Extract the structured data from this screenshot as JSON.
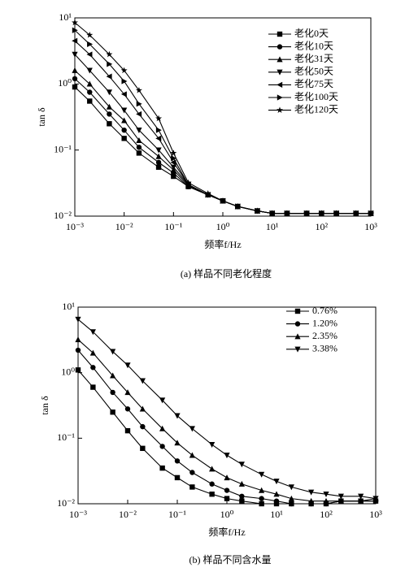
{
  "chart_data": [
    {
      "type": "line",
      "caption": "(a) 样品不同老化程度",
      "xlabel": "频率f/Hz",
      "ylabel": "tan δ",
      "xscale": "log",
      "yscale": "log",
      "xlim": [
        0.001,
        1000
      ],
      "ylim": [
        0.01,
        10
      ],
      "xticks": [
        {
          "value": 0.001,
          "label": "10⁻³"
        },
        {
          "value": 0.01,
          "label": "10⁻²"
        },
        {
          "value": 0.1,
          "label": "10⁻¹"
        },
        {
          "value": 1,
          "label": "10⁰"
        },
        {
          "value": 10,
          "label": "10¹"
        },
        {
          "value": 100,
          "label": "10²"
        },
        {
          "value": 1000,
          "label": "10³"
        }
      ],
      "yticks": [
        {
          "value": 0.01,
          "label": "10⁻²"
        },
        {
          "value": 0.1,
          "label": "10⁻¹"
        },
        {
          "value": 1,
          "label": "10⁰"
        },
        {
          "value": 10,
          "label": "10¹"
        }
      ],
      "legend": "upper right",
      "x": [
        0.001,
        0.002,
        0.005,
        0.01,
        0.02,
        0.05,
        0.1,
        0.2,
        0.5,
        1,
        2,
        5,
        10,
        20,
        50,
        100,
        200,
        500,
        1000
      ],
      "series": [
        {
          "name": "老化0天",
          "color": "#000000",
          "marker": "square",
          "values": [
            0.9,
            0.55,
            0.25,
            0.15,
            0.09,
            0.055,
            0.04,
            0.028,
            0.021,
            0.017,
            0.014,
            0.012,
            0.011,
            0.011,
            0.011,
            0.011,
            0.011,
            0.011,
            0.011
          ]
        },
        {
          "name": "老化10天",
          "color": "#000000",
          "marker": "circle",
          "values": [
            1.2,
            0.75,
            0.35,
            0.2,
            0.11,
            0.065,
            0.045,
            0.028,
            0.021,
            0.017,
            0.014,
            0.012,
            0.011,
            0.011,
            0.011,
            0.011,
            0.011,
            0.011,
            0.011
          ]
        },
        {
          "name": "老化31天",
          "color": "#000000",
          "marker": "triangle-up",
          "values": [
            1.6,
            1.0,
            0.45,
            0.28,
            0.14,
            0.08,
            0.05,
            0.029,
            0.021,
            0.017,
            0.014,
            0.012,
            0.011,
            0.011,
            0.011,
            0.011,
            0.011,
            0.011,
            0.011
          ]
        },
        {
          "name": "老化50天",
          "color": "#000000",
          "marker": "triangle-down",
          "values": [
            2.8,
            1.6,
            0.75,
            0.4,
            0.2,
            0.1,
            0.055,
            0.03,
            0.021,
            0.017,
            0.014,
            0.012,
            0.011,
            0.011,
            0.011,
            0.011,
            0.011,
            0.011,
            0.011
          ]
        },
        {
          "name": "老化75天",
          "color": "#000000",
          "marker": "triangle-left",
          "values": [
            4.5,
            2.8,
            1.3,
            0.7,
            0.35,
            0.15,
            0.065,
            0.03,
            0.021,
            0.017,
            0.014,
            0.012,
            0.011,
            0.011,
            0.011,
            0.011,
            0.011,
            0.011,
            0.011
          ]
        },
        {
          "name": "老化100天",
          "color": "#000000",
          "marker": "triangle-right",
          "values": [
            6.5,
            4.0,
            2.0,
            1.1,
            0.5,
            0.2,
            0.075,
            0.03,
            0.021,
            0.017,
            0.014,
            0.012,
            0.011,
            0.011,
            0.011,
            0.011,
            0.011,
            0.011,
            0.011
          ]
        },
        {
          "name": "老化120天",
          "color": "#000000",
          "marker": "star",
          "values": [
            8.5,
            5.5,
            2.8,
            1.6,
            0.8,
            0.3,
            0.09,
            0.032,
            0.022,
            0.017,
            0.014,
            0.012,
            0.011,
            0.011,
            0.011,
            0.011,
            0.011,
            0.011,
            0.011
          ]
        }
      ]
    },
    {
      "type": "line",
      "caption": "(b) 样品不同含水量",
      "xlabel": "频率f/Hz",
      "ylabel": "tan δ",
      "xscale": "log",
      "yscale": "log",
      "xlim": [
        0.001,
        1000
      ],
      "ylim": [
        0.01,
        10
      ],
      "xticks": [
        {
          "value": 0.001,
          "label": "10⁻³"
        },
        {
          "value": 0.01,
          "label": "10⁻²"
        },
        {
          "value": 0.1,
          "label": "10⁻¹"
        },
        {
          "value": 1,
          "label": "10⁰"
        },
        {
          "value": 10,
          "label": "10¹"
        },
        {
          "value": 100,
          "label": "10²"
        },
        {
          "value": 1000,
          "label": "10³"
        }
      ],
      "yticks": [
        {
          "value": 0.01,
          "label": "10⁻²"
        },
        {
          "value": 0.1,
          "label": "10⁻¹"
        },
        {
          "value": 1,
          "label": "10⁰"
        },
        {
          "value": 10,
          "label": "10¹"
        }
      ],
      "legend": "upper right",
      "x": [
        0.001,
        0.002,
        0.005,
        0.01,
        0.02,
        0.05,
        0.1,
        0.2,
        0.5,
        1,
        2,
        5,
        10,
        20,
        50,
        100,
        200,
        500,
        1000
      ],
      "series": [
        {
          "name": "0.76%",
          "color": "#000000",
          "marker": "square",
          "values": [
            1.1,
            0.6,
            0.25,
            0.13,
            0.07,
            0.035,
            0.025,
            0.018,
            0.014,
            0.012,
            0.011,
            0.01,
            0.01,
            0.01,
            0.01,
            0.01,
            0.011,
            0.011,
            0.011
          ]
        },
        {
          "name": "1.20%",
          "color": "#000000",
          "marker": "circle",
          "values": [
            2.2,
            1.2,
            0.5,
            0.28,
            0.15,
            0.075,
            0.045,
            0.03,
            0.02,
            0.016,
            0.013,
            0.012,
            0.011,
            0.01,
            0.01,
            0.01,
            0.011,
            0.011,
            0.011
          ]
        },
        {
          "name": "2.35%",
          "color": "#000000",
          "marker": "triangle-up",
          "values": [
            3.2,
            2.0,
            0.9,
            0.5,
            0.28,
            0.14,
            0.085,
            0.055,
            0.034,
            0.025,
            0.02,
            0.016,
            0.014,
            0.012,
            0.011,
            0.011,
            0.011,
            0.011,
            0.012
          ]
        },
        {
          "name": "3.38%",
          "color": "#000000",
          "marker": "triangle-down",
          "values": [
            6.5,
            4.2,
            2.1,
            1.3,
            0.75,
            0.38,
            0.22,
            0.14,
            0.08,
            0.055,
            0.04,
            0.028,
            0.022,
            0.018,
            0.015,
            0.014,
            0.013,
            0.013,
            0.012
          ]
        }
      ]
    }
  ]
}
